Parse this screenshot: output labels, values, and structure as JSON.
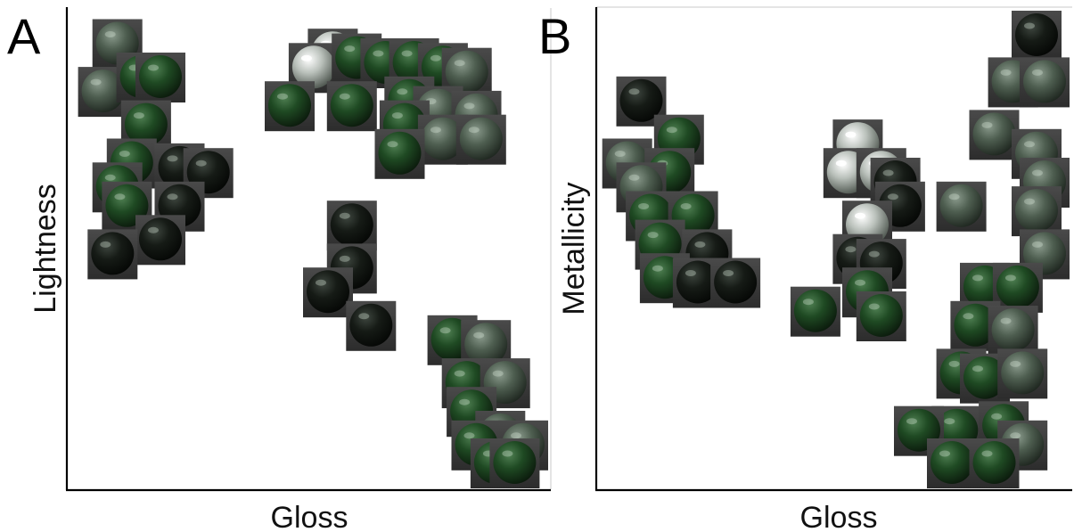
{
  "colors": {
    "tile_background": "#3c3c3c",
    "sphere_green": "#1f4a23",
    "sphere_dark": "#141814",
    "sphere_grey": "#566458",
    "sphere_silver": "#cfd3cf"
  },
  "chart_data": [
    {
      "type": "scatter",
      "panel_label": "A",
      "xlabel": "Gloss",
      "ylabel": "Lightness",
      "xlim": [
        0,
        1
      ],
      "ylim": [
        0,
        1
      ],
      "ticks": "none",
      "grid": false,
      "marker": "rendered sphere thumbnail",
      "points": [
        {
          "x": 0.1,
          "y": 0.93,
          "tone": "grey"
        },
        {
          "x": 0.07,
          "y": 0.83,
          "tone": "grey"
        },
        {
          "x": 0.15,
          "y": 0.86,
          "tone": "green"
        },
        {
          "x": 0.19,
          "y": 0.86,
          "tone": "green"
        },
        {
          "x": 0.16,
          "y": 0.76,
          "tone": "green"
        },
        {
          "x": 0.13,
          "y": 0.68,
          "tone": "green"
        },
        {
          "x": 0.23,
          "y": 0.67,
          "tone": "dark"
        },
        {
          "x": 0.29,
          "y": 0.66,
          "tone": "dark"
        },
        {
          "x": 0.1,
          "y": 0.63,
          "tone": "green"
        },
        {
          "x": 0.12,
          "y": 0.59,
          "tone": "green"
        },
        {
          "x": 0.23,
          "y": 0.59,
          "tone": "dark"
        },
        {
          "x": 0.19,
          "y": 0.52,
          "tone": "dark"
        },
        {
          "x": 0.09,
          "y": 0.49,
          "tone": "dark"
        },
        {
          "x": 0.55,
          "y": 0.91,
          "tone": "silver"
        },
        {
          "x": 0.51,
          "y": 0.88,
          "tone": "silver"
        },
        {
          "x": 0.6,
          "y": 0.9,
          "tone": "green"
        },
        {
          "x": 0.66,
          "y": 0.89,
          "tone": "green"
        },
        {
          "x": 0.72,
          "y": 0.89,
          "tone": "green"
        },
        {
          "x": 0.78,
          "y": 0.88,
          "tone": "green"
        },
        {
          "x": 0.83,
          "y": 0.87,
          "tone": "grey"
        },
        {
          "x": 0.46,
          "y": 0.8,
          "tone": "green"
        },
        {
          "x": 0.59,
          "y": 0.8,
          "tone": "green"
        },
        {
          "x": 0.71,
          "y": 0.81,
          "tone": "green"
        },
        {
          "x": 0.77,
          "y": 0.79,
          "tone": "grey"
        },
        {
          "x": 0.85,
          "y": 0.78,
          "tone": "grey"
        },
        {
          "x": 0.7,
          "y": 0.76,
          "tone": "green"
        },
        {
          "x": 0.78,
          "y": 0.73,
          "tone": "grey"
        },
        {
          "x": 0.86,
          "y": 0.73,
          "tone": "grey"
        },
        {
          "x": 0.69,
          "y": 0.7,
          "tone": "green"
        },
        {
          "x": 0.59,
          "y": 0.55,
          "tone": "dark"
        },
        {
          "x": 0.59,
          "y": 0.46,
          "tone": "dark"
        },
        {
          "x": 0.54,
          "y": 0.41,
          "tone": "dark"
        },
        {
          "x": 0.63,
          "y": 0.34,
          "tone": "dark"
        },
        {
          "x": 0.8,
          "y": 0.31,
          "tone": "green"
        },
        {
          "x": 0.87,
          "y": 0.3,
          "tone": "grey"
        },
        {
          "x": 0.83,
          "y": 0.22,
          "tone": "green"
        },
        {
          "x": 0.91,
          "y": 0.22,
          "tone": "grey"
        },
        {
          "x": 0.84,
          "y": 0.16,
          "tone": "green"
        },
        {
          "x": 0.9,
          "y": 0.11,
          "tone": "grey"
        },
        {
          "x": 0.85,
          "y": 0.09,
          "tone": "green"
        },
        {
          "x": 0.89,
          "y": 0.05,
          "tone": "green"
        },
        {
          "x": 0.95,
          "y": 0.09,
          "tone": "grey"
        },
        {
          "x": 0.93,
          "y": 0.04,
          "tone": "green"
        }
      ]
    },
    {
      "type": "scatter",
      "panel_label": "B",
      "xlabel": "Gloss",
      "ylabel": "Metallicity",
      "xlim": [
        0,
        1
      ],
      "ylim": [
        0,
        1
      ],
      "ticks": "none",
      "grid": false,
      "marker": "rendered sphere thumbnail",
      "points": [
        {
          "x": 0.09,
          "y": 0.81,
          "tone": "dark"
        },
        {
          "x": 0.17,
          "y": 0.73,
          "tone": "green"
        },
        {
          "x": 0.06,
          "y": 0.68,
          "tone": "grey"
        },
        {
          "x": 0.15,
          "y": 0.66,
          "tone": "green"
        },
        {
          "x": 0.09,
          "y": 0.63,
          "tone": "grey"
        },
        {
          "x": 0.11,
          "y": 0.57,
          "tone": "green"
        },
        {
          "x": 0.2,
          "y": 0.57,
          "tone": "green"
        },
        {
          "x": 0.13,
          "y": 0.51,
          "tone": "green"
        },
        {
          "x": 0.23,
          "y": 0.49,
          "tone": "dark"
        },
        {
          "x": 0.14,
          "y": 0.44,
          "tone": "green"
        },
        {
          "x": 0.21,
          "y": 0.43,
          "tone": "dark"
        },
        {
          "x": 0.29,
          "y": 0.43,
          "tone": "dark"
        },
        {
          "x": 0.55,
          "y": 0.72,
          "tone": "silver"
        },
        {
          "x": 0.53,
          "y": 0.66,
          "tone": "silver"
        },
        {
          "x": 0.6,
          "y": 0.66,
          "tone": "silver"
        },
        {
          "x": 0.63,
          "y": 0.64,
          "tone": "dark"
        },
        {
          "x": 0.64,
          "y": 0.59,
          "tone": "dark"
        },
        {
          "x": 0.57,
          "y": 0.55,
          "tone": "silver"
        },
        {
          "x": 0.55,
          "y": 0.48,
          "tone": "dark"
        },
        {
          "x": 0.6,
          "y": 0.47,
          "tone": "dark"
        },
        {
          "x": 0.57,
          "y": 0.41,
          "tone": "green"
        },
        {
          "x": 0.46,
          "y": 0.37,
          "tone": "green"
        },
        {
          "x": 0.6,
          "y": 0.36,
          "tone": "green"
        },
        {
          "x": 0.93,
          "y": 0.95,
          "tone": "dark"
        },
        {
          "x": 0.88,
          "y": 0.85,
          "tone": "grey"
        },
        {
          "x": 0.97,
          "y": 0.85,
          "tone": "grey"
        },
        {
          "x": 0.84,
          "y": 0.74,
          "tone": "grey"
        },
        {
          "x": 0.93,
          "y": 0.7,
          "tone": "grey"
        },
        {
          "x": 0.97,
          "y": 0.64,
          "tone": "grey"
        },
        {
          "x": 0.77,
          "y": 0.59,
          "tone": "grey"
        },
        {
          "x": 0.93,
          "y": 0.58,
          "tone": "grey"
        },
        {
          "x": 0.96,
          "y": 0.49,
          "tone": "grey"
        },
        {
          "x": 0.82,
          "y": 0.42,
          "tone": "green"
        },
        {
          "x": 0.89,
          "y": 0.42,
          "tone": "green"
        },
        {
          "x": 0.8,
          "y": 0.34,
          "tone": "green"
        },
        {
          "x": 0.88,
          "y": 0.33,
          "tone": "grey"
        },
        {
          "x": 0.77,
          "y": 0.24,
          "tone": "green"
        },
        {
          "x": 0.82,
          "y": 0.23,
          "tone": "green"
        },
        {
          "x": 0.9,
          "y": 0.24,
          "tone": "grey"
        },
        {
          "x": 0.76,
          "y": 0.12,
          "tone": "green"
        },
        {
          "x": 0.68,
          "y": 0.12,
          "tone": "green"
        },
        {
          "x": 0.86,
          "y": 0.13,
          "tone": "green"
        },
        {
          "x": 0.9,
          "y": 0.09,
          "tone": "grey"
        },
        {
          "x": 0.75,
          "y": 0.05,
          "tone": "green"
        },
        {
          "x": 0.84,
          "y": 0.05,
          "tone": "green"
        }
      ]
    }
  ]
}
